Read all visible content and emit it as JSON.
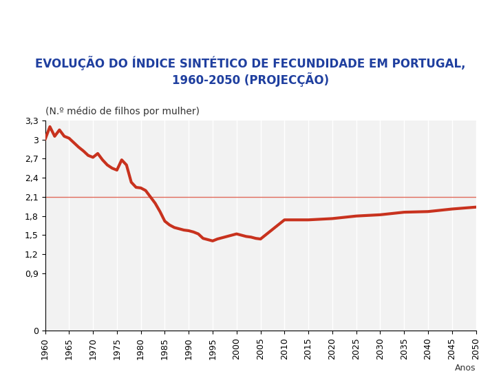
{
  "chart_data": {
    "type": "line",
    "title": "EVOLUÇÃO DO ÍNDICE SINTÉTICO DE FECUNDIDADE EM PORTUGAL, 1960-2050 (PROJECÇÃO)",
    "y_label": "(N.º médio de filhos por mulher)",
    "x_label": "Anos",
    "x": [
      1960,
      1961,
      1962,
      1963,
      1964,
      1965,
      1966,
      1967,
      1968,
      1969,
      1970,
      1971,
      1972,
      1973,
      1974,
      1975,
      1976,
      1977,
      1978,
      1979,
      1980,
      1981,
      1982,
      1983,
      1984,
      1985,
      1986,
      1987,
      1988,
      1989,
      1990,
      1991,
      1992,
      1993,
      1994,
      1995,
      1996,
      1997,
      1998,
      1999,
      2000,
      2001,
      2002,
      2003,
      2004,
      2005,
      2006,
      2007,
      2008,
      2009,
      2010,
      2015,
      2020,
      2025,
      2030,
      2035,
      2040,
      2045,
      2050
    ],
    "values": [
      3.0,
      3.2,
      3.05,
      3.15,
      3.05,
      3.02,
      2.95,
      2.88,
      2.82,
      2.75,
      2.72,
      2.78,
      2.68,
      2.6,
      2.55,
      2.52,
      2.68,
      2.6,
      2.33,
      2.25,
      2.24,
      2.2,
      2.1,
      2.0,
      1.87,
      1.72,
      1.66,
      1.62,
      1.6,
      1.58,
      1.57,
      1.55,
      1.52,
      1.45,
      1.43,
      1.41,
      1.44,
      1.46,
      1.48,
      1.5,
      1.52,
      1.5,
      1.48,
      1.47,
      1.45,
      1.44,
      1.5,
      1.56,
      1.62,
      1.68,
      1.74,
      1.74,
      1.76,
      1.8,
      1.82,
      1.86,
      1.87,
      1.91,
      1.94
    ],
    "color": "#c8321e",
    "reference_value": 2.1,
    "xlim": [
      1960,
      2050
    ],
    "xticks": [
      1960,
      1965,
      1970,
      1975,
      1980,
      1985,
      1990,
      1995,
      2000,
      2005,
      2010,
      2015,
      2020,
      2025,
      2030,
      2035,
      2040,
      2045,
      2050
    ],
    "ylim": [
      0,
      3.3
    ],
    "yticks": [
      0,
      {
        "value": 0.9,
        "label": "0,9"
      },
      {
        "value": 1.2,
        "label": "1,2"
      },
      {
        "value": 1.5,
        "label": "1,5"
      },
      {
        "value": 1.8,
        "label": "1,8"
      },
      {
        "value": 2.1,
        "label": "2,1"
      },
      {
        "value": 2.4,
        "label": "2,4"
      },
      {
        "value": 2.7,
        "label": "2,7"
      },
      3,
      {
        "value": 3.3,
        "label": "3,3"
      }
    ],
    "grid": true
  }
}
